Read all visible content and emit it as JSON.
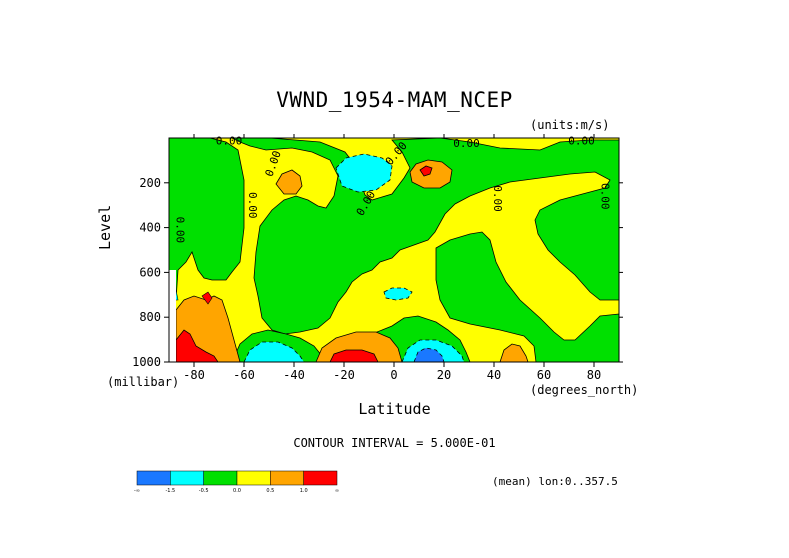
{
  "chart_data": {
    "type": "heatmap",
    "title": "VWND_1954-MAM_NCEP",
    "units_label": "(units:m/s)",
    "ylabel": "Level",
    "ylabel_unit": "(millibar)",
    "xlabel": "Latitude",
    "xlabel_unit": "(degrees_north)",
    "contour_interval_text": "CONTOUR INTERVAL = 5.000E-01",
    "mean_text": "(mean) lon:0..357.5",
    "xlim": [
      -90,
      90
    ],
    "ylim": [
      1000,
      0
    ],
    "x_ticks": [
      "-80",
      "-60",
      "-40",
      "-20",
      "0",
      "20",
      "40",
      "60",
      "80"
    ],
    "x_tick_values": [
      -80,
      -60,
      -40,
      -20,
      0,
      20,
      40,
      60,
      80
    ],
    "y_ticks": [
      "200",
      "400",
      "600",
      "800",
      "1000"
    ],
    "y_tick_values": [
      200,
      400,
      600,
      800,
      1000
    ],
    "contour_labels": [
      "0.00"
    ],
    "colorbar": {
      "labels": [
        "-∞",
        "-1.5",
        "-0.5",
        "0.0",
        "0.5",
        "1.0",
        "∞"
      ],
      "colors": [
        "#1a78ff",
        "#00ffff",
        "#00e000",
        "#ffff00",
        "#ffa500",
        "#ff0000"
      ]
    },
    "regions": [
      {
        "level": "yellow",
        "note": "background 0.0 to 0.5"
      },
      {
        "level": "green",
        "note": "-0.5 to 0.0"
      },
      {
        "level": "cyan",
        "note": "-1.5 to -0.5"
      },
      {
        "level": "blue",
        "note": "below -1.5"
      },
      {
        "level": "orange",
        "note": "0.5 to 1.0"
      },
      {
        "level": "red",
        "note": "above 1.0"
      }
    ]
  }
}
